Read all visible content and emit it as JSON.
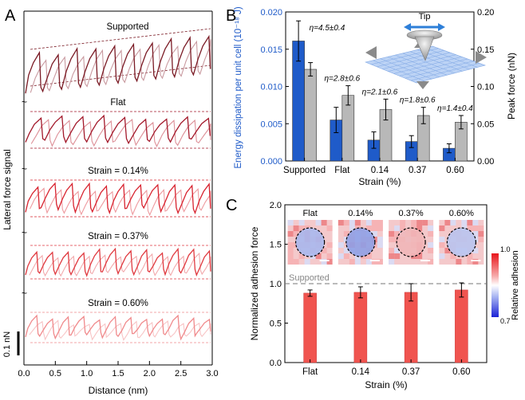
{
  "chart_data": [
    {
      "panel_label": "A",
      "type": "line",
      "xlabel": "Distance (nm)",
      "ylabel": "Lateral force signal",
      "xlim": [
        0,
        3.0
      ],
      "x_ticks": [
        "0.0",
        "0.5",
        "1.0",
        "1.5",
        "2.0",
        "2.5",
        "3.0"
      ],
      "scale_bar_label": "0.1 nN",
      "traces": [
        {
          "name": "Supported",
          "color": "#7a1a24",
          "retrace_color": "#c99aa0",
          "periods": 10,
          "tilt": true
        },
        {
          "name": "Flat",
          "color": "#a3192b",
          "retrace_color": "#dd8f97",
          "periods": 9,
          "tilt": false
        },
        {
          "name": "Strain = 0.14%",
          "color": "#d8232f",
          "retrace_color": "#ee9a9f",
          "periods": 11,
          "tilt": false
        },
        {
          "name": "Strain = 0.37%",
          "color": "#e03a40",
          "retrace_color": "#f2a9ac",
          "periods": 12,
          "tilt": false
        },
        {
          "name": "Strain = 0.60%",
          "color": "#f08a8c",
          "retrace_color": "#f8c4c5",
          "periods": 12,
          "tilt": false
        }
      ]
    },
    {
      "panel_label": "B",
      "type": "bar",
      "categories": [
        "Supported",
        "Flat",
        "0.14",
        "0.37",
        "0.60"
      ],
      "xlabel": "Strain (%)",
      "ylabel_left": "Energy dissipation per unit cell (10⁻¹⁸ J)",
      "ylabel_right": "Peak force (nN)",
      "ylim_left": [
        0,
        0.02
      ],
      "ylim_right": [
        0,
        0.2
      ],
      "left_ticks": [
        "0.000",
        "0.005",
        "0.010",
        "0.015",
        "0.020"
      ],
      "right_ticks": [
        "0.00",
        "0.05",
        "0.10",
        "0.15",
        "0.20"
      ],
      "series": [
        {
          "name": "Energy dissipation",
          "axis": "left",
          "color": "#1f5bc9",
          "values": [
            0.0161,
            0.0055,
            0.0028,
            0.0026,
            0.0017
          ],
          "errors": [
            0.0027,
            0.0017,
            0.0011,
            0.0008,
            0.0006
          ]
        },
        {
          "name": "Peak force",
          "axis": "right",
          "color": "#b8b8b8",
          "values": [
            0.123,
            0.088,
            0.069,
            0.061,
            0.052
          ],
          "errors": [
            0.009,
            0.013,
            0.014,
            0.011,
            0.009
          ]
        }
      ],
      "annotations": [
        "η=4.5±0.4",
        "η=2.8±0.6",
        "η=2.1±0.6",
        "η=1.8±0.6",
        "η=1.4±0.4"
      ],
      "inset_label": "Tip"
    },
    {
      "panel_label": "C",
      "type": "bar",
      "categories": [
        "Flat",
        "0.14",
        "0.37",
        "0.60"
      ],
      "xlabel": "Strain (%)",
      "ylabel": "Normalized adhesion force",
      "ylim": [
        0,
        2.0
      ],
      "y_ticks": [
        "0.0",
        "0.5",
        "1.0",
        "1.5",
        "2.0"
      ],
      "series": [
        {
          "name": "Normalized adhesion",
          "color": "#f0544f",
          "values": [
            0.88,
            0.89,
            0.89,
            0.92
          ],
          "errors": [
            0.04,
            0.07,
            0.11,
            0.09
          ]
        }
      ],
      "reference_line": {
        "label": "Supported",
        "value": 1.0
      },
      "map_labels": [
        "Flat",
        "0.14%",
        "0.37%",
        "0.60%"
      ],
      "colorbar": {
        "label": "Relative adhesion",
        "max_label": "1.0",
        "min_label": "0.7"
      }
    }
  ]
}
